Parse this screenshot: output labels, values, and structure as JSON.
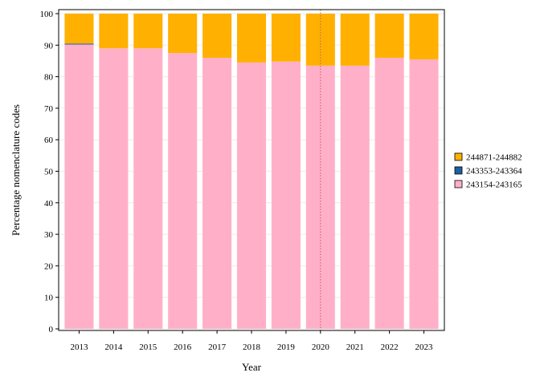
{
  "chart_data": {
    "type": "bar",
    "stacked": true,
    "title": "",
    "xlabel": "Year",
    "ylabel": "Percentage nomenclature codes",
    "ylim": [
      0,
      100
    ],
    "yticks": [
      0,
      10,
      20,
      30,
      40,
      50,
      60,
      70,
      80,
      90,
      100
    ],
    "categories": [
      "2013",
      "2014",
      "2015",
      "2016",
      "2017",
      "2018",
      "2019",
      "2020",
      "2021",
      "2022",
      "2023"
    ],
    "series": [
      {
        "name": "243154-243165",
        "color": "#ffb0c8",
        "values": [
          90.2,
          89.0,
          89.0,
          87.5,
          86.0,
          84.5,
          84.8,
          83.5,
          83.5,
          86.0,
          85.5
        ]
      },
      {
        "name": "243353-243364",
        "color": "#1f5fa0",
        "values": [
          0.3,
          0,
          0,
          0,
          0,
          0,
          0,
          0,
          0,
          0,
          0
        ]
      },
      {
        "name": "244871-244882",
        "color": "#ffb000",
        "values": [
          9.5,
          11.0,
          11.0,
          12.5,
          14.0,
          15.5,
          15.2,
          16.5,
          16.5,
          14.0,
          14.5
        ]
      }
    ],
    "legend_order": [
      "244871-244882",
      "243353-243364",
      "243154-243165"
    ],
    "legend_position": "right",
    "reference_line": {
      "x": "2020",
      "style": "dotted",
      "color": "#c0605a"
    },
    "grid": true
  }
}
